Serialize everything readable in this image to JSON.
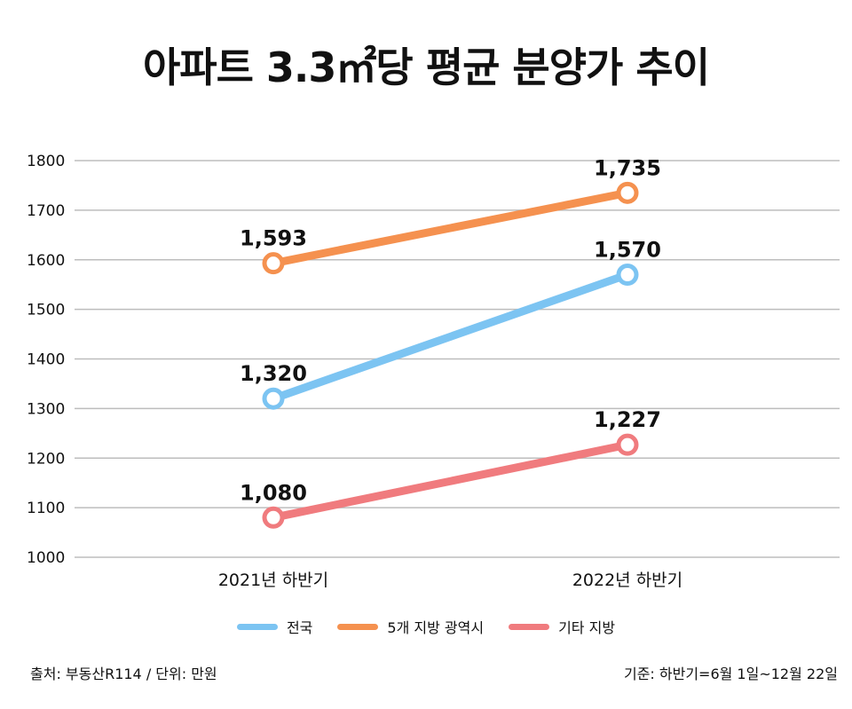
{
  "chart_data": {
    "type": "line",
    "title": "아파트 3.3㎡당 평균 분양가 추이",
    "categories": [
      "2021년 하반기",
      "2022년 하반기"
    ],
    "ylim": [
      1000,
      1800
    ],
    "yticks": [
      "1000",
      "1100",
      "1200",
      "1300",
      "1400",
      "1500",
      "1600",
      "1700",
      "1800"
    ],
    "grid": true,
    "legend_position": "bottom",
    "series": [
      {
        "name": "전국",
        "color": "#7cc4f2",
        "values": [
          1320,
          1570
        ],
        "labels": [
          "1,320",
          "1,570"
        ]
      },
      {
        "name": "5개 지방 광역시",
        "color": "#f5914f",
        "values": [
          1593,
          1735
        ],
        "labels": [
          "1,593",
          "1,735"
        ]
      },
      {
        "name": "기타 지방",
        "color": "#f07b7e",
        "values": [
          1080,
          1227
        ],
        "labels": [
          "1,080",
          "1,227"
        ]
      }
    ]
  },
  "footer": {
    "source": "출처: 부동산R114 / 단위: 만원",
    "basis": "기준: 하반기=6월 1일~12월 22일"
  }
}
